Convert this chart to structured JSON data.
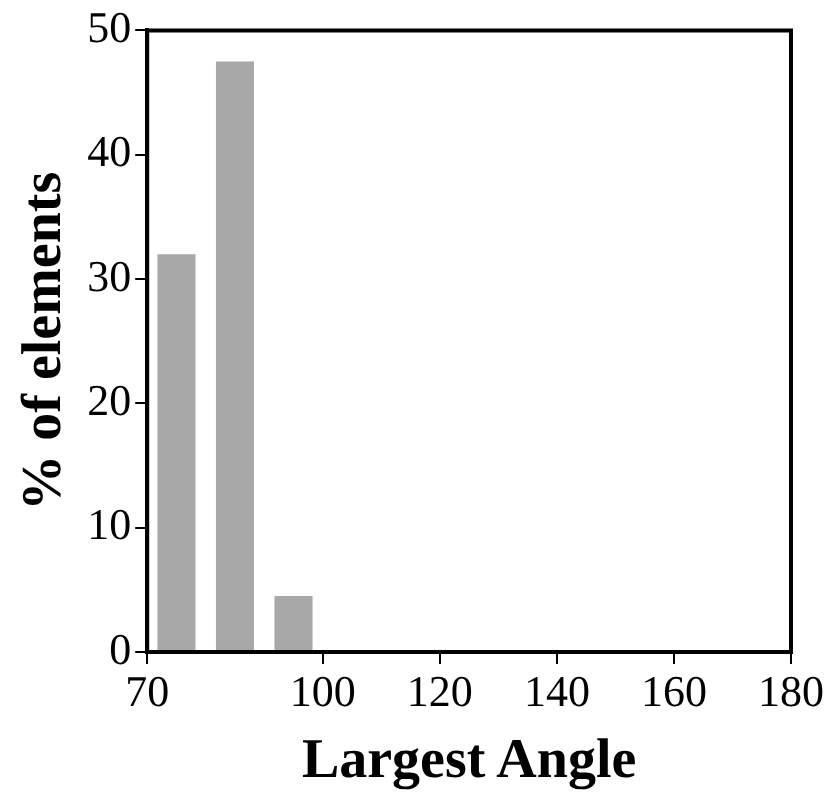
{
  "chart_data": {
    "type": "histogram",
    "xlabel": "Largest Angle",
    "ylabel": "% of elements",
    "bins": [
      70,
      80,
      90,
      100
    ],
    "values": [
      32,
      47.5,
      4.5
    ],
    "color": "#a8a8a8",
    "xlim": [
      70,
      180
    ],
    "xticks": [
      70,
      100,
      120,
      140,
      160,
      180
    ],
    "ylim": [
      0,
      50
    ],
    "yticks": [
      0,
      10,
      20,
      30,
      40,
      50
    ],
    "grid": false,
    "legend": false
  }
}
